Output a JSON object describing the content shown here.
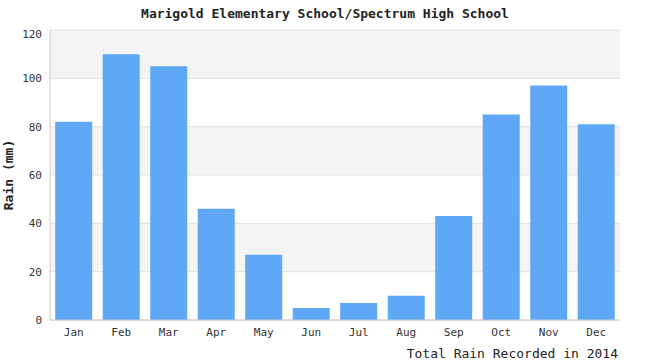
{
  "chart_data": {
    "type": "bar",
    "title": "Marigold Elementary School/Spectrum High School",
    "y_label": "Rain (mm)",
    "x_label": "Total Rain Recorded in 2014",
    "categories": [
      "Jan",
      "Feb",
      "Mar",
      "Apr",
      "May",
      "Jun",
      "Jul",
      "Aug",
      "Sep",
      "Oct",
      "Nov",
      "Dec"
    ],
    "values": [
      82,
      110,
      105,
      46,
      27,
      5,
      7,
      10,
      43,
      85,
      97,
      81
    ],
    "color": "#5ea8f5",
    "ylim": [
      0,
      120
    ],
    "yticks": [
      0,
      20,
      40,
      60,
      80,
      100,
      120
    ],
    "grid": true
  }
}
